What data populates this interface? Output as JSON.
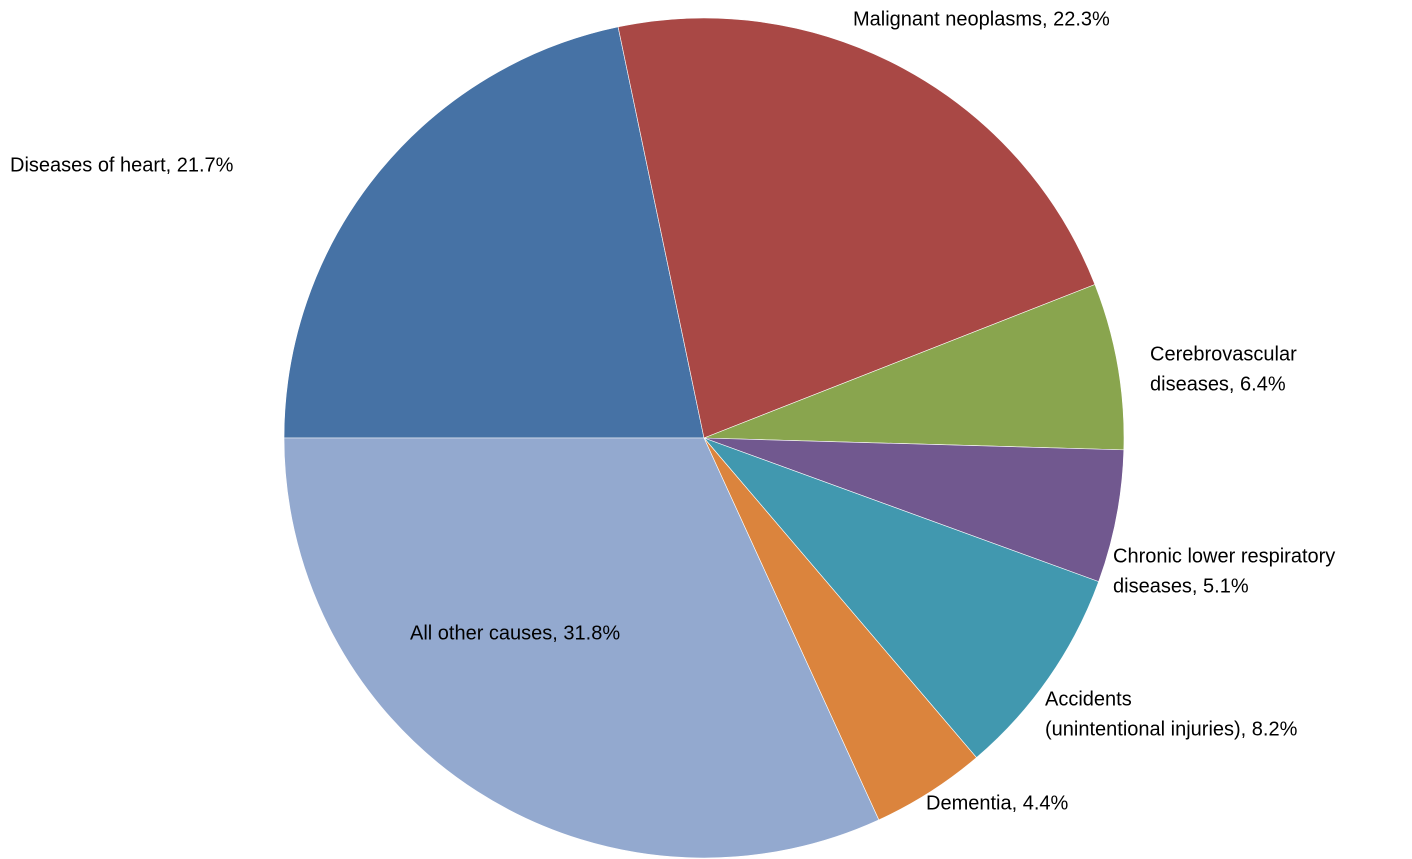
{
  "chart_data": {
    "type": "pie",
    "value_labels": [
      [
        "Diseases of heart, 21.7%"
      ],
      [
        "Malignant neoplasms, 22.3%"
      ],
      [
        "Cerebrovascular",
        "diseases, 6.4%"
      ],
      [
        "Chronic lower respiratory",
        "diseases, 5.1%"
      ],
      [
        "Accidents",
        "(unintentional injuries), 8.2%"
      ],
      [
        "Dementia, 4.4%"
      ],
      [
        "All other causes, 31.8%"
      ]
    ],
    "values": [
      21.7,
      22.3,
      6.4,
      5.1,
      8.2,
      4.4,
      31.8
    ],
    "colors": [
      "#4672a5",
      "#a94845",
      "#89a54e",
      "#71588f",
      "#4198af",
      "#db843d",
      "#93a9cf"
    ]
  }
}
